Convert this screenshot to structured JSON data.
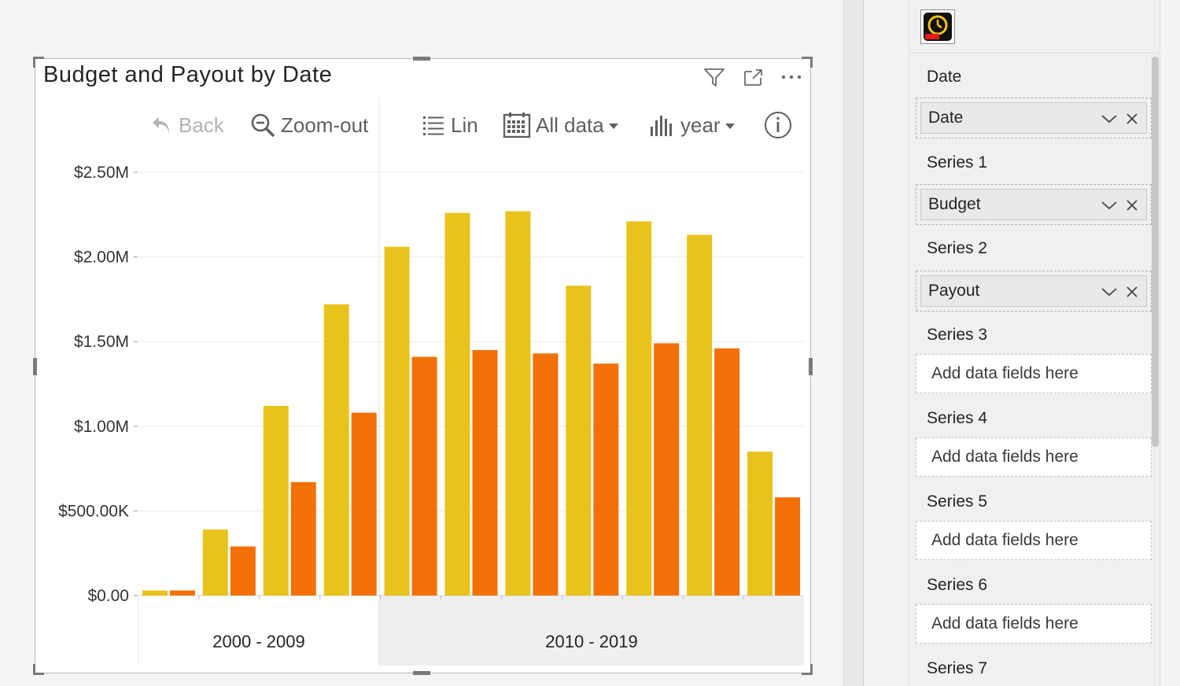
{
  "visual": {
    "title": "Budget and Payout by Date",
    "toolbar": {
      "back_label": "Back",
      "zoomout_label": "Zoom-out",
      "lin_label": "Lin",
      "alldata_label": "All data",
      "year_label": "year"
    }
  },
  "chart_data": {
    "type": "bar",
    "categories": [
      "",
      "",
      "",
      "",
      "",
      "",
      "",
      "",
      "",
      "",
      "",
      ""
    ],
    "groups": [
      {
        "label": "2000 - 2009",
        "from": 0,
        "to": 4
      },
      {
        "label": "2010 - 2019",
        "from": 4,
        "to": 12
      }
    ],
    "series": [
      {
        "name": "Budget",
        "color": "#e8c31b",
        "values": [
          30000,
          390000,
          1120000,
          1720000,
          2060000,
          2260000,
          2270000,
          1830000,
          2210000,
          2130000,
          850000,
          0
        ]
      },
      {
        "name": "Payout",
        "color": "#f37006",
        "values": [
          30000,
          290000,
          670000,
          1080000,
          1410000,
          1450000,
          1430000,
          1370000,
          1490000,
          1460000,
          580000,
          0
        ]
      }
    ],
    "bar_count": 11,
    "ylim": [
      0,
      2500000
    ],
    "yticks": [
      "$0.00",
      "$500.00K",
      "$1.00M",
      "$1.50M",
      "$2.00M",
      "$2.50M"
    ],
    "ytick_values": [
      0,
      500000,
      1000000,
      1500000,
      2000000,
      2500000
    ],
    "grid": true,
    "highlight_group": "2010 - 2019"
  },
  "pane": {
    "wells": [
      {
        "label": "Date",
        "field": "Date"
      },
      {
        "label": "Series 1",
        "field": "Budget"
      },
      {
        "label": "Series 2",
        "field": "Payout"
      },
      {
        "label": "Series 3",
        "placeholder": "Add data fields here"
      },
      {
        "label": "Series 4",
        "placeholder": "Add data fields here"
      },
      {
        "label": "Series 5",
        "placeholder": "Add data fields here"
      },
      {
        "label": "Series 6",
        "placeholder": "Add data fields here"
      },
      {
        "label": "Series 7"
      }
    ]
  },
  "colors": {
    "budget": "#e8c31b",
    "payout": "#f37006",
    "text": "#252423"
  },
  "icons": [
    "filter-icon",
    "focus-mode-icon",
    "more-options-icon",
    "back-icon",
    "zoom-out-icon",
    "list-icon",
    "calendar-icon",
    "bar-chart-icon",
    "info-icon",
    "chevron-down-icon",
    "close-icon",
    "visual-type-icon"
  ]
}
